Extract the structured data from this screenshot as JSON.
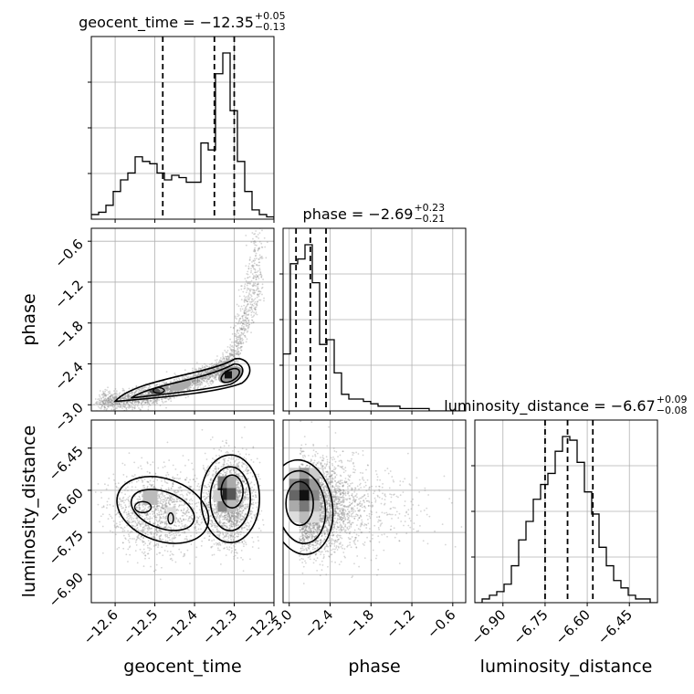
{
  "chart_data": {
    "type": "corner",
    "parameters": [
      "geocent_time",
      "phase",
      "luminosity_distance"
    ],
    "ranges": {
      "geocent_time": [
        -12.66,
        -12.2
      ],
      "phase": [
        -3.09,
        -0.41
      ],
      "luminosity_distance": [
        -7.0,
        -6.35
      ]
    },
    "ticks": {
      "geocent_time": [
        -12.6,
        -12.5,
        -12.4,
        -12.3,
        -12.2
      ],
      "phase": [
        -3.0,
        -2.4,
        -1.8,
        -1.2,
        -0.6
      ],
      "luminosity_distance": [
        -6.9,
        -6.75,
        -6.6,
        -6.45
      ]
    },
    "tick_labels": {
      "geocent_time": [
        "−12.6",
        "−12.5",
        "−12.4",
        "−12.3",
        "−12.2"
      ],
      "phase": [
        "−3.0",
        "−2.4",
        "−1.8",
        "−1.2",
        "−0.6"
      ],
      "luminosity_distance": [
        "−6.90",
        "−6.75",
        "−6.60",
        "−6.45"
      ]
    },
    "axis_labels": {
      "geocent_time": "geocent_time",
      "phase": "phase",
      "luminosity_distance": "luminosity_distance"
    },
    "titles": [
      {
        "param": "geocent_time",
        "text": "geocent_time = −12.35",
        "sup": "+0.05",
        "sub": "−0.13"
      },
      {
        "param": "phase",
        "text": "phase = −2.69",
        "sup": "+0.23",
        "sub": "−0.21"
      },
      {
        "param": "luminosity_distance",
        "text": "luminosity_distance = −6.67",
        "sup": "+0.09",
        "sub": "−0.08"
      }
    ],
    "quantile_lines": {
      "geocent_time": [
        -12.48,
        -12.35,
        -12.3
      ],
      "phase": [
        -2.9,
        -2.69,
        -2.46
      ],
      "luminosity_distance": [
        -6.75,
        -6.67,
        -6.58
      ]
    },
    "histograms": {
      "geocent_time": {
        "x0": -12.66,
        "x1": -12.2,
        "counts": [
          2,
          3,
          6,
          12,
          17,
          20,
          27,
          25,
          24,
          20,
          17,
          19,
          18,
          16,
          16,
          33,
          30,
          63,
          72,
          47,
          25,
          12,
          4,
          2,
          1
        ]
      },
      "phase": {
        "x0": -3.09,
        "x1": -0.41,
        "counts": [
          24,
          62,
          64,
          70,
          54,
          28,
          30,
          16,
          7,
          5,
          5,
          4,
          3,
          2,
          2,
          2,
          1,
          1,
          1,
          1,
          0,
          0,
          0,
          0,
          0
        ]
      },
      "luminosity_distance": {
        "x0": -7.0,
        "x1": -6.35,
        "counts": [
          0,
          1,
          2,
          3,
          5,
          10,
          17,
          22,
          28,
          32,
          35,
          41,
          45,
          44,
          38,
          30,
          24,
          15,
          10,
          6,
          4,
          2,
          1,
          1,
          0
        ]
      }
    },
    "grid": true
  }
}
